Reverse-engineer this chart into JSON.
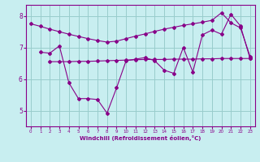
{
  "xlabel": "Windchill (Refroidissement éolien,°C)",
  "bg_color": "#c8eef0",
  "line_color": "#880088",
  "grid_color": "#99cccc",
  "xlim": [
    -0.5,
    23.5
  ],
  "ylim": [
    4.5,
    8.35
  ],
  "yticks": [
    5,
    6,
    7,
    8
  ],
  "xticks": [
    0,
    1,
    2,
    3,
    4,
    5,
    6,
    7,
    8,
    9,
    10,
    11,
    12,
    13,
    14,
    15,
    16,
    17,
    18,
    19,
    20,
    21,
    22,
    23
  ],
  "line1_x": [
    0,
    1,
    2,
    3,
    4,
    5,
    6,
    7,
    8,
    9,
    10,
    11,
    12,
    13,
    14,
    15,
    16,
    17,
    18,
    19,
    20,
    21,
    22,
    23
  ],
  "line1_y": [
    7.75,
    7.67,
    7.58,
    7.5,
    7.42,
    7.35,
    7.28,
    7.22,
    7.17,
    7.2,
    7.28,
    7.36,
    7.43,
    7.51,
    7.58,
    7.64,
    7.7,
    7.75,
    7.8,
    7.86,
    8.1,
    7.78,
    7.62,
    6.72
  ],
  "line2_x": [
    2,
    3,
    4,
    5,
    6,
    7,
    8,
    9,
    10,
    11,
    12,
    13,
    14,
    15,
    16,
    17,
    18,
    19,
    20,
    21,
    22,
    23
  ],
  "line2_y": [
    6.55,
    6.55,
    6.55,
    6.56,
    6.56,
    6.57,
    6.58,
    6.59,
    6.6,
    6.61,
    6.62,
    6.62,
    6.62,
    6.63,
    6.63,
    6.63,
    6.64,
    6.64,
    6.65,
    6.65,
    6.65,
    6.65
  ],
  "line3_x": [
    1,
    2,
    3,
    4,
    5,
    6,
    7,
    8,
    9,
    10,
    11,
    12,
    13,
    14,
    15,
    16,
    17,
    18,
    19,
    20,
    21,
    22,
    23
  ],
  "line3_y": [
    6.85,
    6.82,
    7.05,
    5.88,
    5.38,
    5.38,
    5.35,
    4.92,
    5.72,
    6.58,
    6.63,
    6.68,
    6.58,
    6.28,
    6.18,
    7.0,
    6.22,
    7.4,
    7.55,
    7.42,
    8.05,
    7.68,
    6.65
  ]
}
